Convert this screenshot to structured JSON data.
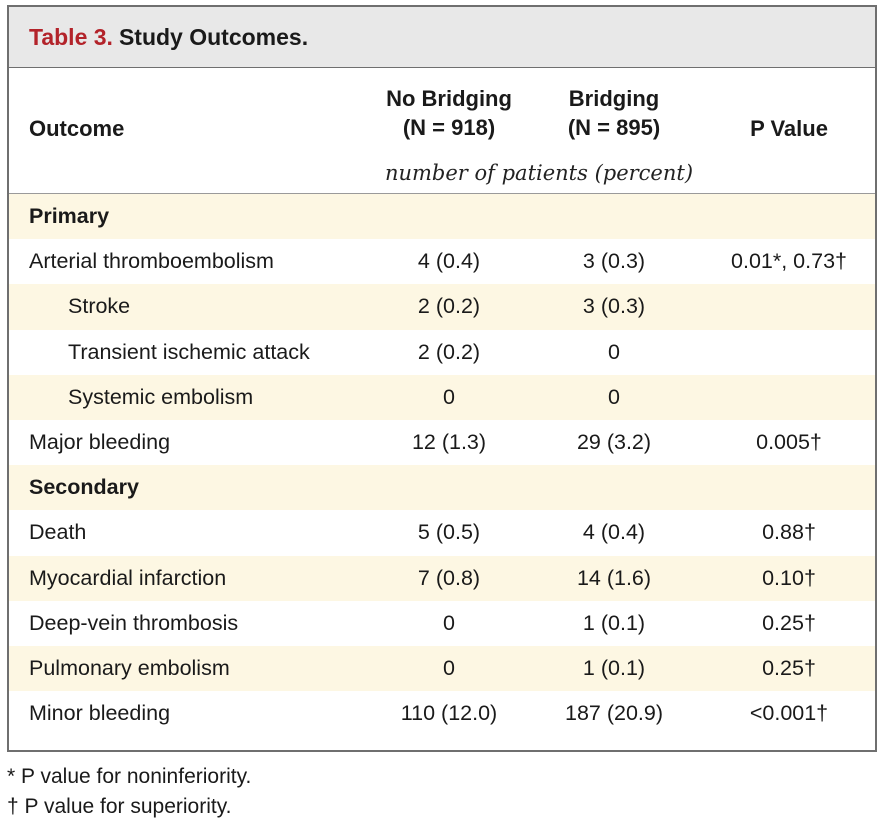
{
  "table": {
    "title_label": "Table 3.",
    "title_text": "Study Outcomes.",
    "headers": {
      "outcome": "Outcome",
      "no_bridging": "No Bridging",
      "no_bridging_n": "(N = 918)",
      "bridging": "Bridging",
      "bridging_n": "(N = 895)",
      "p_value": "P Value",
      "units": "number of patients (percent)"
    },
    "rows": [
      {
        "label": "Primary",
        "no_bridging": "",
        "bridging": "",
        "p": ""
      },
      {
        "label": "Arterial thromboembolism",
        "no_bridging": "4 (0.4)",
        "bridging": "3 (0.3)",
        "p": "0.01*, 0.73†"
      },
      {
        "label": "Stroke",
        "no_bridging": "2 (0.2)",
        "bridging": "3 (0.3)",
        "p": ""
      },
      {
        "label": "Transient ischemic attack",
        "no_bridging": "2 (0.2)",
        "bridging": "0",
        "p": ""
      },
      {
        "label": "Systemic embolism",
        "no_bridging": "0",
        "bridging": "0",
        "p": ""
      },
      {
        "label": "Major bleeding",
        "no_bridging": "12 (1.3)",
        "bridging": "29 (3.2)",
        "p": "0.005†"
      },
      {
        "label": "Secondary",
        "no_bridging": "",
        "bridging": "",
        "p": ""
      },
      {
        "label": "Death",
        "no_bridging": "5 (0.5)",
        "bridging": "4 (0.4)",
        "p": "0.88†"
      },
      {
        "label": "Myocardial infarction",
        "no_bridging": "7 (0.8)",
        "bridging": "14 (1.6)",
        "p": "0.10†"
      },
      {
        "label": "Deep-vein thrombosis",
        "no_bridging": "0",
        "bridging": "1 (0.1)",
        "p": "0.25†"
      },
      {
        "label": "Pulmonary embolism",
        "no_bridging": "0",
        "bridging": "1 (0.1)",
        "p": "0.25†"
      },
      {
        "label": "Minor bleeding",
        "no_bridging": "110 (12.0)",
        "bridging": "187 (20.9)",
        "p": "<0.001†"
      }
    ]
  },
  "footnotes": {
    "noninferiority": "* P value for noninferiority.",
    "superiority": "† P value for superiority."
  },
  "colors": {
    "title_label": "#b3232a",
    "title_bar": "#e8e8e8",
    "shaded_row": "#fdf7e3",
    "border": "#6f6f6f"
  }
}
